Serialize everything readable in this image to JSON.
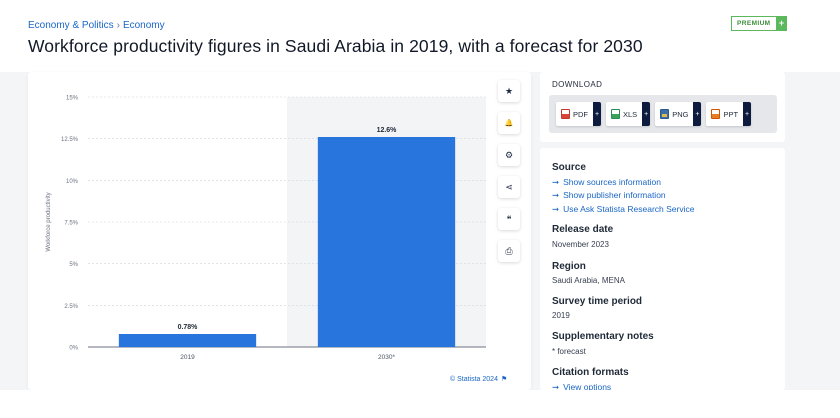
{
  "breadcrumb": {
    "item1": "Economy & Politics",
    "separator": "›",
    "item2": "Economy"
  },
  "page_title": "Workforce productivity figures in Saudi Arabia in 2019, with a forecast for 2030",
  "premium": {
    "label": "PREMIUM",
    "plus": "+"
  },
  "chart_data": {
    "type": "bar",
    "categories": [
      "2019",
      "2030*"
    ],
    "values": [
      0.78,
      12.6
    ],
    "value_labels": [
      "0.78%",
      "12.6%"
    ],
    "ylabel": "Workforce productivity",
    "yticks": [
      "0%",
      "2.5%",
      "5%",
      "7.5%",
      "10%",
      "12.5%",
      "15%"
    ],
    "ylim": [
      0,
      15
    ],
    "bar_color": "#2876dd",
    "forecast_shaded": true
  },
  "credit": {
    "text": "© Statista 2024",
    "flag": "⚑"
  },
  "tools": [
    {
      "icon": "star-icon",
      "glyph": "★"
    },
    {
      "icon": "bell-icon",
      "glyph": "🔔"
    },
    {
      "icon": "gear-icon",
      "glyph": "⚙"
    },
    {
      "icon": "share-icon",
      "glyph": "⋖"
    },
    {
      "icon": "quote-icon",
      "glyph": "❝"
    },
    {
      "icon": "print-icon",
      "glyph": "⎙"
    }
  ],
  "download": {
    "title": "DOWNLOAD",
    "buttons": [
      {
        "label": "PDF",
        "plus": "+"
      },
      {
        "label": "XLS",
        "plus": "+"
      },
      {
        "label": "PNG",
        "plus": "+"
      },
      {
        "label": "PPT",
        "plus": "+"
      }
    ]
  },
  "info": {
    "source_heading": "Source",
    "source_links": [
      "Show sources information",
      "Show publisher information",
      "Use Ask Statista Research Service"
    ],
    "link_arrow": "➞",
    "release_heading": "Release date",
    "release_value": "November 2023",
    "region_heading": "Region",
    "region_value": "Saudi Arabia, MENA",
    "survey_heading": "Survey time period",
    "survey_value": "2019",
    "notes_heading": "Supplementary notes",
    "notes_value": "* forecast",
    "citation_heading": "Citation formats",
    "citation_link": "View options"
  }
}
